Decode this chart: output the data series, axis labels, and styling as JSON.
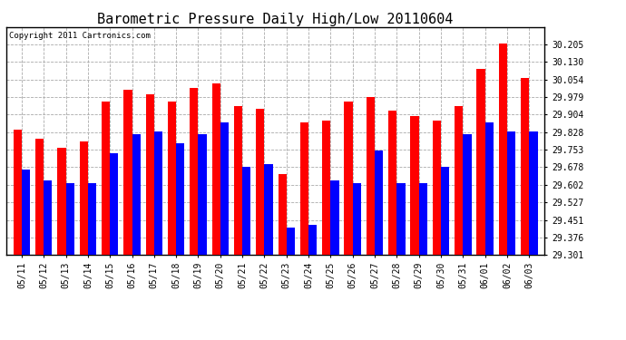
{
  "title": "Barometric Pressure Daily High/Low 20110604",
  "copyright_text": "Copyright 2011 Cartronics.com",
  "dates": [
    "05/11",
    "05/12",
    "05/13",
    "05/14",
    "05/15",
    "05/16",
    "05/17",
    "05/18",
    "05/19",
    "05/20",
    "05/21",
    "05/22",
    "05/23",
    "05/24",
    "05/25",
    "05/26",
    "05/27",
    "05/28",
    "05/29",
    "05/30",
    "05/31",
    "06/01",
    "06/02",
    "06/03"
  ],
  "highs": [
    29.84,
    29.8,
    29.76,
    29.79,
    29.96,
    30.01,
    29.99,
    29.96,
    30.02,
    30.04,
    29.94,
    29.93,
    29.65,
    29.87,
    29.88,
    29.96,
    29.98,
    29.92,
    29.9,
    29.88,
    29.94,
    30.1,
    30.21,
    30.06
  ],
  "lows": [
    29.67,
    29.62,
    29.61,
    29.61,
    29.74,
    29.82,
    29.83,
    29.78,
    29.82,
    29.87,
    29.68,
    29.69,
    29.42,
    29.43,
    29.62,
    29.61,
    29.75,
    29.61,
    29.61,
    29.68,
    29.82,
    29.87,
    29.83,
    29.83
  ],
  "high_color": "#FF0000",
  "low_color": "#0000FF",
  "bg_color": "#FFFFFF",
  "grid_color": "#AAAAAA",
  "ylim_min": 29.301,
  "ylim_max": 30.28,
  "yticks": [
    29.301,
    29.376,
    29.451,
    29.527,
    29.602,
    29.678,
    29.753,
    29.828,
    29.904,
    29.979,
    30.054,
    30.13,
    30.205
  ],
  "title_fontsize": 11,
  "copyright_fontsize": 6.5,
  "tick_fontsize": 7,
  "bar_width": 0.38
}
